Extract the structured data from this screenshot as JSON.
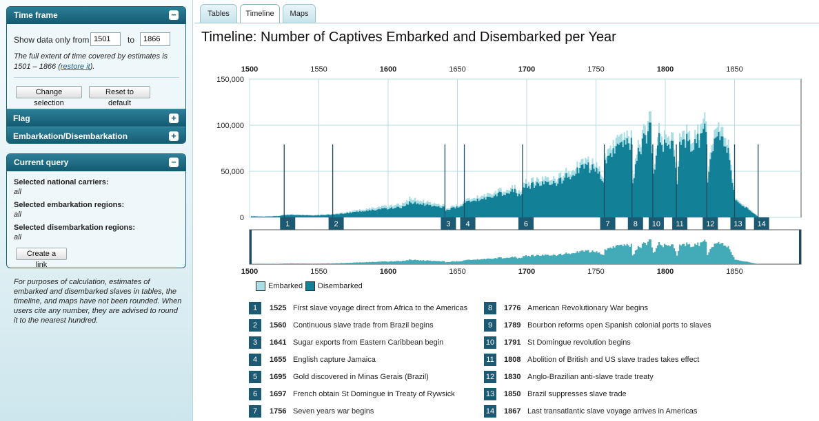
{
  "sidebar": {
    "timeframe": {
      "title": "Time frame",
      "toggle": "−",
      "show_label": "Show data only from",
      "from_value": "1501",
      "to_label": "to",
      "to_value": "1866",
      "note_a": "The full extent of time covered by estimates is 1501 – 1866 (",
      "note_link": "restore it",
      "note_b": ").",
      "change_button": "Change selection",
      "reset_button": "Reset to default"
    },
    "flag": {
      "title": "Flag",
      "toggle": "+"
    },
    "embark": {
      "title": "Embarkation/Disembarkation",
      "toggle": "+"
    },
    "query": {
      "title": "Current query",
      "toggle": "−",
      "carriers_label": "Selected national carriers:",
      "carriers_value": "all",
      "embark_label": "Selected embarkation regions:",
      "embark_value": "all",
      "disembark_label": "Selected disembarkation regions:",
      "disembark_value": "all",
      "link_button": "Create a link"
    },
    "footnote": "For purposes of calculation, estimates of embarked and disembarked slaves in tables, the timeline, and maps have not been rounded. When users cite any number, they are advised to round it to the nearest hundred."
  },
  "tabs": [
    "Tables",
    "Timeline",
    "Maps"
  ],
  "active_tab": "Timeline",
  "page_title": "Timeline: Number of Captives Embarked and Disembarked per Year",
  "legend": {
    "embarked": "Embarked",
    "disembarked": "Disembarked"
  },
  "colors": {
    "embarked": "#a8dde4",
    "disembarked": "#128197",
    "header": "#145a70",
    "event_badge": "#1c5a74",
    "overview_fill": "#43aab7"
  },
  "chart_data": {
    "type": "area",
    "xlim": [
      1500,
      1898
    ],
    "ylim": [
      0,
      150000
    ],
    "x_ticks": [
      1500,
      1550,
      1600,
      1650,
      1700,
      1750,
      1800,
      1850
    ],
    "x_tick_labels": [
      "1500",
      "1550",
      "1600",
      "1650",
      "1700",
      "1750",
      "1800",
      "1850"
    ],
    "y_ticks": [
      0,
      50000,
      100000,
      150000
    ],
    "y_tick_labels": [
      "0",
      "50,000",
      "100,000",
      "150,000"
    ],
    "grid": true,
    "series": [
      {
        "name": "Embarked",
        "x": [
          1501,
          1510,
          1520,
          1525,
          1530,
          1545,
          1560,
          1570,
          1580,
          1590,
          1600,
          1610,
          1615,
          1620,
          1630,
          1640,
          1641,
          1645,
          1650,
          1655,
          1660,
          1670,
          1680,
          1690,
          1695,
          1697,
          1700,
          1705,
          1710,
          1720,
          1730,
          1740,
          1745,
          1750,
          1755,
          1756,
          1760,
          1765,
          1770,
          1775,
          1776,
          1780,
          1785,
          1789,
          1791,
          1795,
          1800,
          1805,
          1808,
          1810,
          1815,
          1820,
          1825,
          1829,
          1830,
          1835,
          1840,
          1845,
          1850,
          1855,
          1860,
          1866
        ],
        "values": [
          1500,
          1000,
          2000,
          3000,
          3500,
          2500,
          4000,
          6000,
          9000,
          11000,
          13000,
          15000,
          22000,
          20000,
          16000,
          14000,
          9000,
          12000,
          14000,
          18000,
          22000,
          26000,
          30000,
          34000,
          28000,
          36000,
          40000,
          42000,
          41000,
          43000,
          52000,
          60000,
          62000,
          60000,
          45000,
          70000,
          75000,
          86000,
          88000,
          92000,
          40000,
          80000,
          100000,
          112000,
          55000,
          95000,
          86000,
          92000,
          38000,
          90000,
          98000,
          85000,
          100000,
          110000,
          45000,
          100000,
          95000,
          85000,
          20000,
          16000,
          10000,
          1500
        ]
      },
      {
        "name": "Disembarked",
        "x": [
          1501,
          1510,
          1520,
          1525,
          1530,
          1545,
          1560,
          1570,
          1580,
          1590,
          1600,
          1610,
          1615,
          1620,
          1630,
          1640,
          1641,
          1645,
          1650,
          1655,
          1660,
          1670,
          1680,
          1690,
          1695,
          1697,
          1700,
          1705,
          1710,
          1720,
          1730,
          1740,
          1745,
          1750,
          1755,
          1756,
          1760,
          1765,
          1770,
          1775,
          1776,
          1780,
          1785,
          1789,
          1791,
          1795,
          1800,
          1805,
          1808,
          1810,
          1815,
          1820,
          1825,
          1829,
          1830,
          1835,
          1840,
          1845,
          1850,
          1855,
          1860,
          1866
        ],
        "values": [
          1200,
          800,
          1500,
          2500,
          2800,
          2000,
          3200,
          4800,
          7000,
          8500,
          10000,
          11500,
          17000,
          16000,
          13000,
          11500,
          7500,
          10000,
          12000,
          15500,
          19000,
          22000,
          26000,
          30000,
          24000,
          31000,
          35000,
          37000,
          36000,
          38000,
          46000,
          54000,
          56000,
          54000,
          40000,
          63000,
          67000,
          77000,
          80000,
          84000,
          36000,
          72000,
          90000,
          100000,
          49000,
          85000,
          77000,
          83000,
          34000,
          81000,
          88000,
          76000,
          90000,
          98000,
          40000,
          90000,
          85000,
          76000,
          18000,
          14000,
          9000,
          1200
        ]
      }
    ],
    "event_markers": [
      {
        "n": "1",
        "year": 1525
      },
      {
        "n": "2",
        "year": 1560
      },
      {
        "n": "3",
        "year": 1641
      },
      {
        "n": "4",
        "year": 1655
      },
      {
        "n": "6",
        "year": 1697
      },
      {
        "n": "7",
        "year": 1756
      },
      {
        "n": "8",
        "year": 1776
      },
      {
        "n": "10",
        "year": 1791
      },
      {
        "n": "11",
        "year": 1808
      },
      {
        "n": "12",
        "year": 1830
      },
      {
        "n": "13",
        "year": 1850
      },
      {
        "n": "14",
        "year": 1867
      }
    ]
  },
  "events": [
    {
      "n": "1",
      "year": "1525",
      "text": "First slave voyage direct from Africa to the Americas"
    },
    {
      "n": "2",
      "year": "1560",
      "text": "Continuous slave trade from Brazil begins"
    },
    {
      "n": "3",
      "year": "1641",
      "text": "Sugar exports from Eastern Caribbean begin"
    },
    {
      "n": "4",
      "year": "1655",
      "text": "English capture Jamaica"
    },
    {
      "n": "5",
      "year": "1695",
      "text": "Gold discovered in Minas Gerais (Brazil)"
    },
    {
      "n": "6",
      "year": "1697",
      "text": "French obtain St Domingue in Treaty of Rywsick"
    },
    {
      "n": "7",
      "year": "1756",
      "text": "Seven years war begins"
    },
    {
      "n": "8",
      "year": "1776",
      "text": "American Revolutionary War begins"
    },
    {
      "n": "9",
      "year": "1789",
      "text": "Bourbon reforms open Spanish colonial ports to slaves"
    },
    {
      "n": "10",
      "year": "1791",
      "text": "St Domingue revolution begins"
    },
    {
      "n": "11",
      "year": "1808",
      "text": "Abolition of British and US slave trades takes effect"
    },
    {
      "n": "12",
      "year": "1830",
      "text": "Anglo-Brazilian anti-slave trade treaty"
    },
    {
      "n": "13",
      "year": "1850",
      "text": "Brazil suppresses slave trade"
    },
    {
      "n": "14",
      "year": "1867",
      "text": "Last transatlantic slave voyage arrives in Americas"
    }
  ]
}
